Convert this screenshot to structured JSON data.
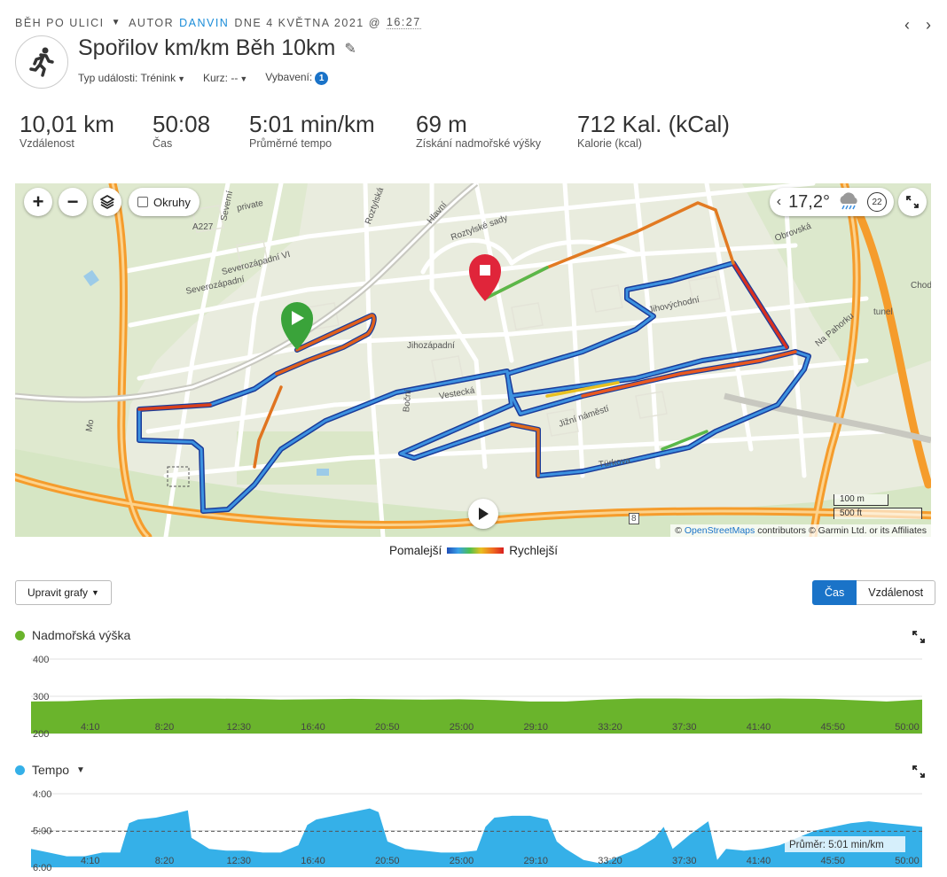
{
  "header": {
    "activity_type": "Běh po ulici",
    "author_prefix": "Autor",
    "author": "danvin",
    "date_text": "dne 4 května 2021 @",
    "time": "16:27",
    "title": "Spořilov km/km Běh 10km",
    "event_type_label": "Typ události:",
    "event_type_value": "Trénink",
    "course_label": "Kurz:",
    "course_value": "--",
    "gear_label": "Vybavení:",
    "gear_count": "1",
    "prev_icon": "chevron-left-icon",
    "next_icon": "chevron-right-icon"
  },
  "stats": [
    {
      "value": "10,01 km",
      "label": "Vzdálenost"
    },
    {
      "value": "50:08",
      "label": "Čas"
    },
    {
      "value": "5:01 min/km",
      "label": "Průměrné tempo"
    },
    {
      "value": "69 m",
      "label": "Získání nadmořské výšky"
    },
    {
      "value": "712 Kal. (kCal)",
      "label": "Kalorie (kcal)"
    }
  ],
  "map": {
    "zoom_in": "+",
    "zoom_out": "−",
    "layers_icon": "layers-icon",
    "laps_label": "Okruhy",
    "temperature": "17,2°",
    "weather_icon": "cloud-rain-icon",
    "wind_speed": "22",
    "scale_metric": "100 m",
    "scale_imperial": "500 ft",
    "attribution_prefix": "©",
    "attribution_link": "OpenStreetMaps",
    "attribution_rest": "contributors © Garmin Ltd. or its Affiliates",
    "labels": [
      {
        "text": "private"
      },
      {
        "text": "Severozápadní VI"
      },
      {
        "text": "Severozápadní"
      },
      {
        "text": "Jihozápadní"
      },
      {
        "text": "Jižní náměstí"
      },
      {
        "text": "Roztylské sady"
      },
      {
        "text": "Jihovýchodní"
      },
      {
        "text": "Hlavní"
      },
      {
        "text": "Severní"
      },
      {
        "text": "Boční"
      },
      {
        "text": "Türkova"
      },
      {
        "text": "Obrovská"
      },
      {
        "text": "Na Pahorku"
      },
      {
        "text": "Chodov"
      },
      {
        "text": "A227"
      },
      {
        "text": "Roztylská"
      },
      {
        "text": "Vestecká"
      },
      {
        "text": "Mo"
      },
      {
        "text": "8"
      },
      {
        "text": "tunel"
      }
    ]
  },
  "legend": {
    "slower": "Pomalejší",
    "faster": "Rychlejší"
  },
  "controls": {
    "edit_graphs": "Upravit grafy",
    "toggle_time": "Čas",
    "toggle_distance": "Vzdálenost"
  },
  "elevation": {
    "title": "Nadmořská výška",
    "color": "#6ab42c",
    "y_ticks": [
      "400",
      "300",
      "200"
    ],
    "x_ticks": [
      "4:10",
      "8:20",
      "12:30",
      "16:40",
      "20:50",
      "25:00",
      "29:10",
      "33:20",
      "37:30",
      "41:40",
      "45:50",
      "50:00"
    ]
  },
  "pace": {
    "title": "Tempo",
    "color": "#35b0e8",
    "y_ticks": [
      "4:00",
      "5:00",
      "6:00"
    ],
    "x_ticks": [
      "4:10",
      "8:20",
      "12:30",
      "16:40",
      "20:50",
      "25:00",
      "29:10",
      "33:20",
      "37:30",
      "41:40",
      "45:50",
      "50:00"
    ],
    "avg_label": "Průměr:",
    "avg_value": "5:01 min/km"
  },
  "chart_data": [
    {
      "type": "area",
      "title": "Nadmořská výška",
      "ylabel": "",
      "ylim": [
        200,
        400
      ],
      "x_minutes": [
        0,
        2,
        4,
        6,
        8,
        10,
        12,
        14,
        16,
        18,
        20,
        22,
        24,
        26,
        28,
        30,
        32,
        34,
        36,
        38,
        40,
        42,
        44,
        46,
        48,
        50
      ],
      "values": [
        286,
        287,
        291,
        293,
        294,
        294,
        293,
        291,
        292,
        293,
        292,
        291,
        292,
        290,
        286,
        286,
        291,
        294,
        294,
        293,
        293,
        294,
        293,
        290,
        286,
        291
      ]
    },
    {
      "type": "area",
      "title": "Tempo",
      "ylabel": "",
      "ylim": [
        "4:00",
        "6:00"
      ],
      "y_min_per_km": [
        4.0,
        6.0
      ],
      "avg_min_per_km": 5.02,
      "x_minutes": [
        0,
        1,
        2,
        3,
        4,
        5,
        5.5,
        6,
        7,
        8,
        8.8,
        9,
        10,
        11,
        12,
        13,
        14,
        15,
        15.5,
        16,
        17,
        18,
        19,
        19.5,
        20,
        21,
        22,
        23,
        24,
        25,
        25.5,
        26,
        27,
        28,
        29,
        29.5,
        30,
        31,
        32,
        33,
        34,
        35,
        35.5,
        36,
        37,
        38,
        38.5,
        39,
        40,
        41,
        42,
        43,
        44,
        45,
        46,
        47,
        48,
        49,
        50
      ],
      "values": [
        5.5,
        5.6,
        5.7,
        5.7,
        5.6,
        5.6,
        4.8,
        4.7,
        4.65,
        4.55,
        4.45,
        5.2,
        5.5,
        5.55,
        5.55,
        5.6,
        5.6,
        5.4,
        4.85,
        4.7,
        4.6,
        4.5,
        4.4,
        4.5,
        5.3,
        5.5,
        5.55,
        5.6,
        5.6,
        5.55,
        4.9,
        4.65,
        4.6,
        4.6,
        4.7,
        5.3,
        5.5,
        5.8,
        5.9,
        5.7,
        5.5,
        5.2,
        4.9,
        5.5,
        5.1,
        4.75,
        5.8,
        5.5,
        5.55,
        5.5,
        5.4,
        5.2,
        5.0,
        4.9,
        4.8,
        4.75,
        4.8,
        4.85,
        4.9
      ]
    }
  ]
}
